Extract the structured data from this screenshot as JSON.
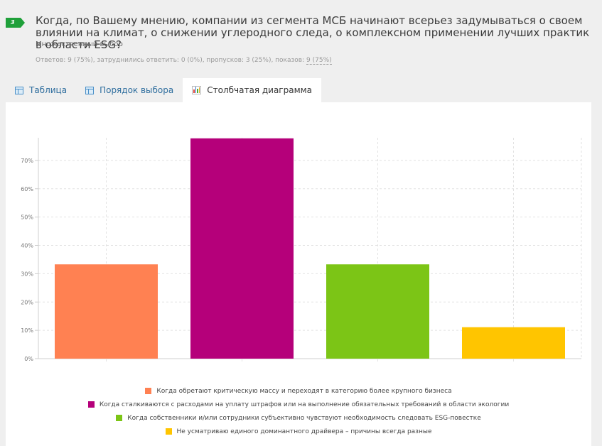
{
  "question": {
    "number": "3",
    "title": "Когда, по Вашему мнению, компании из сегмента МСБ начинают всерьез задумываться о своем влиянии на климат, о снижении углеродного следа, о комплексном применении лучших практик в области ESG?",
    "type": "Множественный выбор",
    "stats_prefix": "Ответов: 9 (75%), затруднились ответить: 0 (0%), пропусков: 3 (25%), показов: ",
    "stats_link": "9 (75%)"
  },
  "tabs": [
    {
      "label": "Таблица",
      "icon": "table-icon"
    },
    {
      "label": "Порядок выбора",
      "icon": "table-icon"
    },
    {
      "label": "Столбчатая диаграмма",
      "icon": "bar-chart-icon"
    }
  ],
  "active_tab": 2,
  "chart_data": {
    "type": "bar",
    "categories": [
      "Когда обретают критическую массу и переходят в категорию более крупного бизнеса",
      "Когда сталкиваются с расходами на уплату штрафов или на выполнение обязательных требований в области экологии",
      "Когда собственники и/или сотрудники субъективно чувствуют необходимость следовать ESG-повестке",
      "Не усматриваю единого доминантного драйвера – причины всегда разные"
    ],
    "values": [
      33.3,
      77.8,
      33.3,
      11.1
    ],
    "colors": [
      "#ff8152",
      "#b5007a",
      "#7cc516",
      "#ffc500"
    ],
    "yticks": [
      "0%",
      "10%",
      "20%",
      "30%",
      "40%",
      "50%",
      "60%",
      "70%"
    ],
    "ylim": [
      0,
      78
    ],
    "grid": true,
    "legend_position": "bottom"
  }
}
